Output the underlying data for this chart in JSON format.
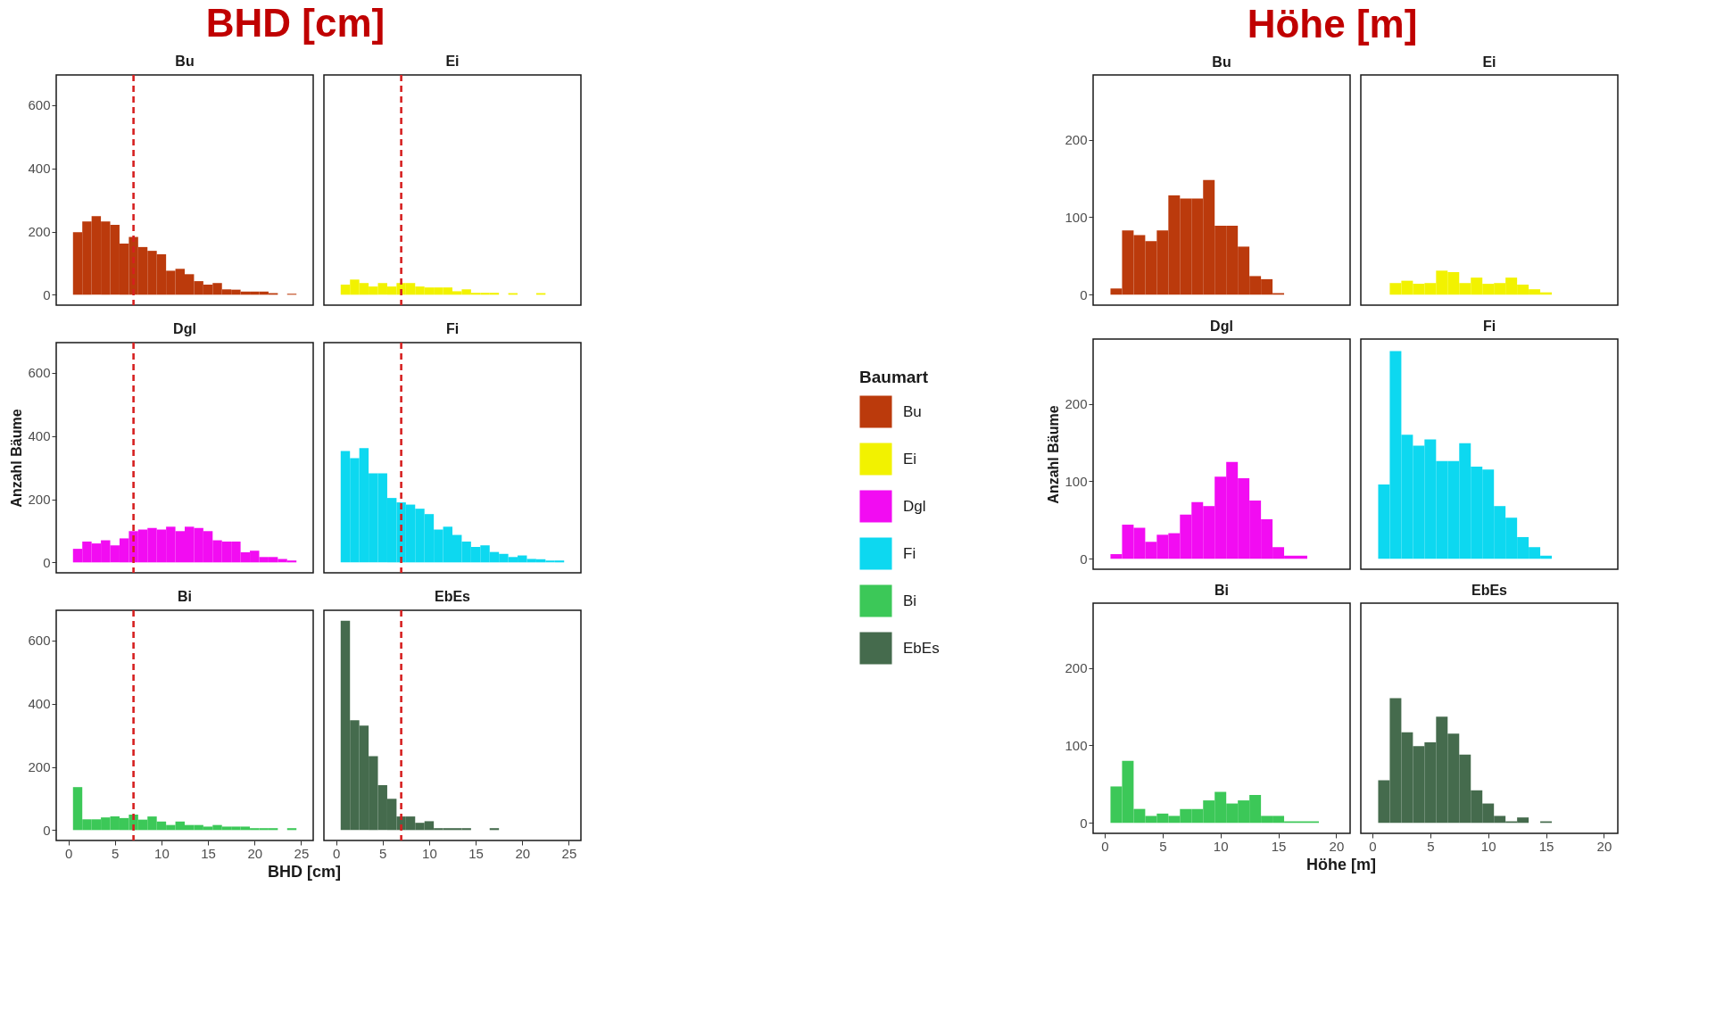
{
  "chart_data": [
    {
      "type": "histogram",
      "annotations": [
        "BHD [cm]"
      ],
      "legend": "right",
      "legend_title": "Baumart",
      "tick_labels": "y",
      "bins": [
        0.5,
        1.5,
        2.5,
        3.5,
        4.5,
        5.5,
        6.5,
        7.5,
        8.5,
        9.5,
        10.5,
        11.5,
        12.5,
        13.5,
        14.5,
        15.5,
        16.5,
        17.5,
        18.5,
        19.5,
        20.5,
        21.5,
        22.5,
        23.5,
        24.5
      ],
      "xlim": [
        -1.3,
        26.3
      ],
      "xticks": [
        0,
        5,
        10,
        15,
        20,
        25
      ],
      "ylim": [
        -33,
        696
      ],
      "yticks": [
        0,
        200,
        400,
        600
      ],
      "series": [
        {
          "name": "Bu",
          "color": "#bb3a0c",
          "values": [
            198,
            232,
            249,
            232,
            221,
            162,
            183,
            151,
            139,
            128,
            76,
            82,
            65,
            43,
            32,
            37,
            17,
            16,
            10,
            10,
            10,
            5,
            0,
            3
          ]
        }
      ],
      "ref_lines": [
        {
          "axis": "x",
          "value": 7,
          "color": "#d62020",
          "line_style": "dashed"
        }
      ]
    },
    {
      "type": "histogram",
      "tick_labels": false,
      "bins": [
        0.5,
        1.5,
        2.5,
        3.5,
        4.5,
        5.5,
        6.5,
        7.5,
        8.5,
        9.5,
        10.5,
        11.5,
        12.5,
        13.5,
        14.5,
        15.5,
        16.5,
        17.5,
        18.5,
        19.5,
        20.5,
        21.5,
        22.5,
        23.5,
        24.5
      ],
      "xlim": [
        -1.3,
        26.3
      ],
      "xticks": [
        0,
        5,
        10,
        15,
        20,
        25
      ],
      "ylim": [
        -33,
        696
      ],
      "yticks": [
        0,
        200,
        400,
        600
      ],
      "series": [
        {
          "name": "Ei",
          "color": "#f2f200",
          "values": [
            32,
            48,
            37,
            26,
            37,
            26,
            37,
            37,
            26,
            23,
            23,
            23,
            11,
            17,
            6,
            6,
            6,
            0,
            5,
            0,
            0,
            5,
            0,
            0
          ]
        }
      ],
      "ref_lines": [
        {
          "axis": "x",
          "value": 7,
          "color": "#d62020",
          "line_style": "dashed"
        }
      ]
    },
    {
      "type": "histogram",
      "ylabel": "Anzahl Bäume",
      "tick_labels": "y",
      "bins": [
        0.5,
        1.5,
        2.5,
        3.5,
        4.5,
        5.5,
        6.5,
        7.5,
        8.5,
        9.5,
        10.5,
        11.5,
        12.5,
        13.5,
        14.5,
        15.5,
        16.5,
        17.5,
        18.5,
        19.5,
        20.5,
        21.5,
        22.5,
        23.5,
        24.5
      ],
      "xlim": [
        -1.3,
        26.3
      ],
      "xticks": [
        0,
        5,
        10,
        15,
        20,
        25
      ],
      "ylim": [
        -33,
        696
      ],
      "yticks": [
        0,
        200,
        400,
        600
      ],
      "series": [
        {
          "name": "Dgl",
          "color": "#f20cf2",
          "values": [
            43,
            66,
            60,
            70,
            54,
            76,
            99,
            104,
            109,
            104,
            113,
            99,
            113,
            109,
            99,
            70,
            66,
            66,
            32,
            37,
            17,
            17,
            11,
            6
          ]
        }
      ],
      "ref_lines": [
        {
          "axis": "x",
          "value": 7,
          "color": "#d62020",
          "line_style": "dashed"
        }
      ]
    },
    {
      "type": "histogram",
      "tick_labels": false,
      "bins": [
        0.5,
        1.5,
        2.5,
        3.5,
        4.5,
        5.5,
        6.5,
        7.5,
        8.5,
        9.5,
        10.5,
        11.5,
        12.5,
        13.5,
        14.5,
        15.5,
        16.5,
        17.5,
        18.5,
        19.5,
        20.5,
        21.5,
        22.5,
        23.5,
        24.5
      ],
      "xlim": [
        -1.3,
        26.3
      ],
      "xticks": [
        0,
        5,
        10,
        15,
        20,
        25
      ],
      "ylim": [
        -33,
        696
      ],
      "yticks": [
        0,
        200,
        400,
        600
      ],
      "series": [
        {
          "name": "Fi",
          "color": "#0dd8f0",
          "values": [
            353,
            330,
            362,
            282,
            282,
            204,
            190,
            183,
            170,
            153,
            104,
            113,
            87,
            66,
            49,
            54,
            33,
            27,
            17,
            22,
            11,
            10,
            6,
            6
          ]
        }
      ],
      "ref_lines": [
        {
          "axis": "x",
          "value": 7,
          "color": "#d62020",
          "line_style": "dashed"
        }
      ]
    },
    {
      "type": "histogram",
      "xlabel": "BHD [cm]",
      "bins": [
        0.5,
        1.5,
        2.5,
        3.5,
        4.5,
        5.5,
        6.5,
        7.5,
        8.5,
        9.5,
        10.5,
        11.5,
        12.5,
        13.5,
        14.5,
        15.5,
        16.5,
        17.5,
        18.5,
        19.5,
        20.5,
        21.5,
        22.5,
        23.5,
        24.5
      ],
      "xlim": [
        -1.3,
        26.3
      ],
      "xticks": [
        0,
        5,
        10,
        15,
        20,
        25
      ],
      "ylim": [
        -33,
        696
      ],
      "yticks": [
        0,
        200,
        400,
        600
      ],
      "series": [
        {
          "name": "Bi",
          "color": "#3cc858",
          "values": [
            136,
            34,
            34,
            40,
            43,
            38,
            49,
            33,
            43,
            27,
            16,
            27,
            16,
            16,
            11,
            16,
            11,
            11,
            11,
            6,
            6,
            6,
            0,
            6
          ]
        }
      ],
      "ref_lines": [
        {
          "axis": "x",
          "value": 7,
          "color": "#d62020",
          "line_style": "dashed"
        }
      ]
    },
    {
      "type": "histogram",
      "tick_labels": "x",
      "bins": [
        0.5,
        1.5,
        2.5,
        3.5,
        4.5,
        5.5,
        6.5,
        7.5,
        8.5,
        9.5,
        10.5,
        11.5,
        12.5,
        13.5,
        14.5,
        15.5,
        16.5,
        17.5,
        18.5,
        19.5,
        20.5,
        21.5,
        22.5,
        23.5,
        24.5
      ],
      "xlim": [
        -1.3,
        26.3
      ],
      "xticks": [
        0,
        5,
        10,
        15,
        20,
        25
      ],
      "ylim": [
        -33,
        696
      ],
      "yticks": [
        0,
        200,
        400,
        600
      ],
      "series": [
        {
          "name": "EbEs",
          "color": "#456b4d",
          "values": [
            663,
            348,
            331,
            234,
            142,
            99,
            43,
            43,
            23,
            28,
            6,
            6,
            6,
            6,
            0,
            0,
            6,
            0,
            0,
            0,
            0,
            0,
            0,
            0
          ]
        }
      ],
      "ref_lines": [
        {
          "axis": "x",
          "value": 7,
          "color": "#d62020",
          "line_style": "dashed"
        }
      ]
    },
    {
      "type": "histogram",
      "annotations": [
        "Höhe [m]"
      ],
      "tick_labels": "y",
      "bins": [
        0.5,
        1.5,
        2.5,
        3.5,
        4.5,
        5.5,
        6.5,
        7.5,
        8.5,
        9.5,
        10.5,
        11.5,
        12.5,
        13.5,
        14.5,
        15.5,
        16.5,
        17.5,
        18.5
      ],
      "xlim": [
        -1.0,
        21.2
      ],
      "xticks": [
        0,
        5,
        10,
        15,
        20
      ],
      "ylim": [
        -13.5,
        283.5
      ],
      "yticks": [
        0,
        100,
        200
      ],
      "series": [
        {
          "name": "Bu",
          "color": "#bb3a0c",
          "values": [
            8,
            83,
            77,
            69,
            83,
            128,
            124,
            124,
            148,
            89,
            89,
            62,
            24,
            20,
            2,
            0,
            0,
            0
          ]
        }
      ]
    },
    {
      "type": "histogram",
      "tick_labels": false,
      "bins": [
        0.5,
        1.5,
        2.5,
        3.5,
        4.5,
        5.5,
        6.5,
        7.5,
        8.5,
        9.5,
        10.5,
        11.5,
        12.5,
        13.5,
        14.5,
        15.5,
        16.5,
        17.5,
        18.5
      ],
      "xlim": [
        -1.0,
        21.2
      ],
      "xticks": [
        0,
        5,
        10,
        15,
        20
      ],
      "ylim": [
        -13.5,
        283.5
      ],
      "yticks": [
        0,
        100,
        200
      ],
      "series": [
        {
          "name": "Ei",
          "color": "#f2f200",
          "values": [
            0,
            15,
            18,
            14,
            15,
            31,
            29,
            15,
            22,
            14,
            15,
            22,
            13,
            7,
            3,
            0,
            0,
            0
          ]
        }
      ]
    },
    {
      "type": "histogram",
      "ylabel": "Anzahl Bäume",
      "tick_labels": "y",
      "bins": [
        0.5,
        1.5,
        2.5,
        3.5,
        4.5,
        5.5,
        6.5,
        7.5,
        8.5,
        9.5,
        10.5,
        11.5,
        12.5,
        13.5,
        14.5,
        15.5,
        16.5,
        17.5,
        18.5
      ],
      "xlim": [
        -1.0,
        21.2
      ],
      "xticks": [
        0,
        5,
        10,
        15,
        20
      ],
      "ylim": [
        -13.5,
        283.5
      ],
      "yticks": [
        0,
        100,
        200
      ],
      "series": [
        {
          "name": "Dgl",
          "color": "#f20cf2",
          "values": [
            6,
            44,
            40,
            22,
            31,
            33,
            57,
            73,
            68,
            106,
            125,
            104,
            75,
            51,
            15,
            4,
            4,
            0
          ]
        }
      ]
    },
    {
      "type": "histogram",
      "tick_labels": false,
      "bins": [
        0.5,
        1.5,
        2.5,
        3.5,
        4.5,
        5.5,
        6.5,
        7.5,
        8.5,
        9.5,
        10.5,
        11.5,
        12.5,
        13.5,
        14.5,
        15.5,
        16.5,
        17.5,
        18.5
      ],
      "xlim": [
        -1.0,
        21.2
      ],
      "xticks": [
        0,
        5,
        10,
        15,
        20
      ],
      "ylim": [
        -13.5,
        283.5
      ],
      "yticks": [
        0,
        100,
        200
      ],
      "series": [
        {
          "name": "Fi",
          "color": "#0dd8f0",
          "values": [
            96,
            268,
            160,
            146,
            154,
            126,
            126,
            149,
            119,
            115,
            68,
            53,
            28,
            15,
            4,
            0,
            0,
            0
          ]
        }
      ]
    },
    {
      "type": "histogram",
      "xlabel": "Höhe [m]",
      "bins": [
        0.5,
        1.5,
        2.5,
        3.5,
        4.5,
        5.5,
        6.5,
        7.5,
        8.5,
        9.5,
        10.5,
        11.5,
        12.5,
        13.5,
        14.5,
        15.5,
        16.5,
        17.5,
        18.5
      ],
      "xlim": [
        -1.0,
        21.2
      ],
      "xticks": [
        0,
        5,
        10,
        15,
        20
      ],
      "ylim": [
        -13.5,
        283.5
      ],
      "yticks": [
        0,
        100,
        200
      ],
      "series": [
        {
          "name": "Bi",
          "color": "#3cc858",
          "values": [
            47,
            80,
            18,
            9,
            12,
            9,
            18,
            18,
            29,
            40,
            25,
            29,
            36,
            9,
            9,
            2,
            2,
            2
          ]
        }
      ]
    },
    {
      "type": "histogram",
      "tick_labels": "x",
      "bins": [
        0.5,
        1.5,
        2.5,
        3.5,
        4.5,
        5.5,
        6.5,
        7.5,
        8.5,
        9.5,
        10.5,
        11.5,
        12.5,
        13.5,
        14.5,
        15.5,
        16.5,
        17.5,
        18.5
      ],
      "xlim": [
        -1.0,
        21.2
      ],
      "xticks": [
        0,
        5,
        10,
        15,
        20
      ],
      "ylim": [
        -13.5,
        283.5
      ],
      "yticks": [
        0,
        100,
        200
      ],
      "series": [
        {
          "name": "EbEs",
          "color": "#456b4d",
          "values": [
            55,
            161,
            117,
            99,
            104,
            137,
            115,
            88,
            42,
            25,
            9,
            2,
            7,
            0,
            2,
            0,
            0,
            0
          ]
        }
      ]
    }
  ]
}
